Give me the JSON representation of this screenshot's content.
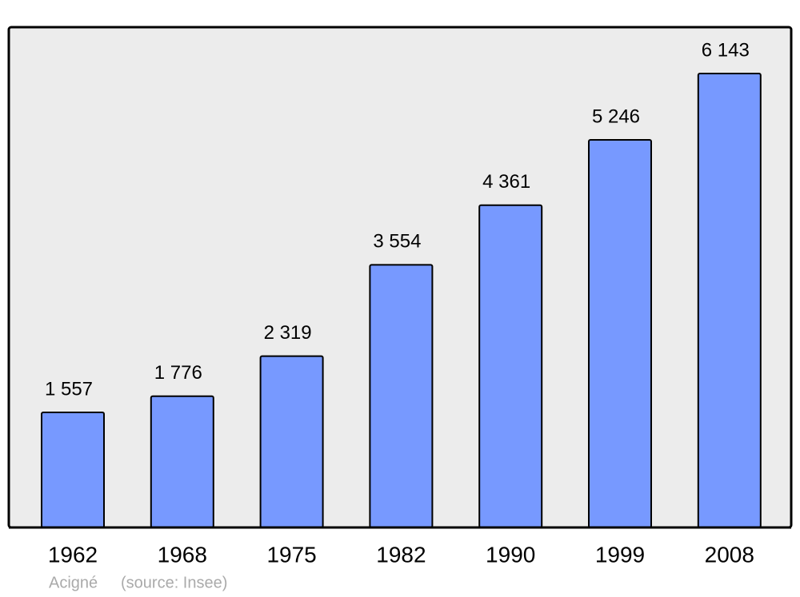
{
  "chart_data": {
    "type": "bar",
    "categories": [
      "1962",
      "1968",
      "1975",
      "1982",
      "1990",
      "1999",
      "2008"
    ],
    "values": [
      1557,
      1776,
      2319,
      3554,
      4361,
      5246,
      6143
    ],
    "value_labels": [
      "1 557",
      "1 776",
      "2 319",
      "3 554",
      "4 361",
      "5 246",
      "6 143"
    ],
    "color": "#7799ff",
    "subtitle": "Acigné",
    "source": "(source: Insee)"
  }
}
